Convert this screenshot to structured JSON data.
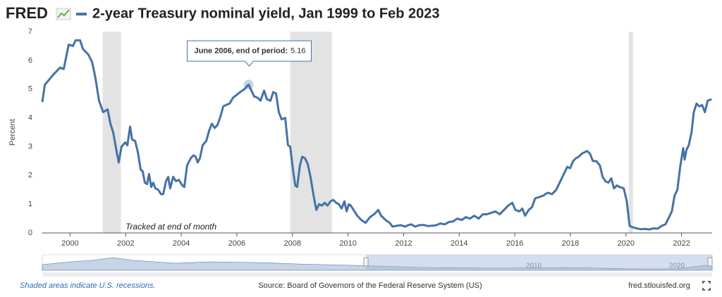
{
  "logo": "FRED",
  "chart_data": {
    "type": "line",
    "title": "2-year Treasury nominal yield, Jan 1999 to Feb 2023",
    "y_label": "Percent",
    "annotation": "Tracked at end of month",
    "tooltip": {
      "label": "June 2006, end of period:",
      "value": 5.16
    },
    "xlim": [
      1999,
      2023.1
    ],
    "xticks": [
      2000,
      2002,
      2004,
      2006,
      2008,
      2010,
      2012,
      2014,
      2016,
      2018,
      2020,
      2022
    ],
    "ylim": [
      0,
      7
    ],
    "yticks": [
      0,
      1,
      2,
      3,
      4,
      5,
      6,
      7
    ],
    "recessions": [
      [
        2001.17,
        2001.83
      ],
      [
        2007.92,
        2009.42
      ],
      [
        2020.1,
        2020.25
      ]
    ],
    "x": [
      1999.0,
      1999.09,
      1999.39,
      1999.64,
      1999.77,
      1999.95,
      2000.1,
      2000.2,
      2000.36,
      2000.46,
      2000.66,
      2000.79,
      2000.91,
      2001.04,
      2001.19,
      2001.35,
      2001.45,
      2001.55,
      2001.68,
      2001.75,
      2001.85,
      2001.98,
      2002.06,
      2002.16,
      2002.23,
      2002.34,
      2002.44,
      2002.54,
      2002.61,
      2002.69,
      2002.77,
      2002.84,
      2002.92,
      2002.99,
      2003.07,
      2003.17,
      2003.27,
      2003.35,
      2003.45,
      2003.53,
      2003.6,
      2003.71,
      2003.81,
      2003.91,
      2004.04,
      2004.11,
      2004.21,
      2004.34,
      2004.44,
      2004.52,
      2004.59,
      2004.67,
      2004.77,
      2004.9,
      2005.0,
      2005.1,
      2005.2,
      2005.3,
      2005.41,
      2005.51,
      2005.61,
      2005.74,
      2005.86,
      2005.99,
      2006.12,
      2006.27,
      2006.42,
      2006.5,
      2006.62,
      2006.75,
      2006.85,
      2006.98,
      2007.08,
      2007.21,
      2007.31,
      2007.41,
      2007.51,
      2007.61,
      2007.74,
      2007.84,
      2007.92,
      2008.02,
      2008.1,
      2008.17,
      2008.27,
      2008.35,
      2008.45,
      2008.55,
      2008.65,
      2008.76,
      2008.86,
      2008.96,
      2009.06,
      2009.16,
      2009.26,
      2009.37,
      2009.47,
      2009.57,
      2009.67,
      2009.77,
      2009.87,
      2009.95,
      2010.03,
      2010.1,
      2010.2,
      2010.33,
      2010.48,
      2010.63,
      2010.79,
      2010.94,
      2011.09,
      2011.19,
      2011.35,
      2011.5,
      2011.6,
      2011.75,
      2011.9,
      2012.06,
      2012.16,
      2012.28,
      2012.41,
      2012.56,
      2012.72,
      2012.87,
      2013.02,
      2013.17,
      2013.32,
      2013.48,
      2013.63,
      2013.78,
      2013.93,
      2014.09,
      2014.24,
      2014.39,
      2014.54,
      2014.7,
      2014.85,
      2015.0,
      2015.15,
      2015.3,
      2015.46,
      2015.61,
      2015.76,
      2015.91,
      2016.02,
      2016.17,
      2016.27,
      2016.37,
      2016.5,
      2016.62,
      2016.73,
      2016.88,
      2017.03,
      2017.18,
      2017.34,
      2017.49,
      2017.64,
      2017.79,
      2017.89,
      2017.99,
      2018.1,
      2018.2,
      2018.3,
      2018.4,
      2018.5,
      2018.6,
      2018.71,
      2018.81,
      2018.93,
      2019.06,
      2019.16,
      2019.26,
      2019.37,
      2019.47,
      2019.57,
      2019.67,
      2019.77,
      2019.92,
      2020.03,
      2020.13,
      2020.23,
      2020.38,
      2020.53,
      2020.69,
      2020.84,
      2020.99,
      2021.14,
      2021.29,
      2021.42,
      2021.55,
      2021.65,
      2021.75,
      2021.85,
      2021.95,
      2022.06,
      2022.11,
      2022.18,
      2022.26,
      2022.36,
      2022.44,
      2022.54,
      2022.64,
      2022.74,
      2022.84,
      2022.94,
      2023.08
    ],
    "series": [
      {
        "name": "2-year Treasury nominal yield",
        "color": "#4572a7",
        "values": [
          4.55,
          5.15,
          5.5,
          5.75,
          5.7,
          6.55,
          6.5,
          6.7,
          6.7,
          6.4,
          6.2,
          5.95,
          5.4,
          4.6,
          4.2,
          4.3,
          3.8,
          3.5,
          2.8,
          2.45,
          3.0,
          3.15,
          3.05,
          3.7,
          3.25,
          3.2,
          2.8,
          2.2,
          2.15,
          1.75,
          1.7,
          2.05,
          1.6,
          1.75,
          1.55,
          1.5,
          1.35,
          1.35,
          1.8,
          1.95,
          1.55,
          1.95,
          1.8,
          1.85,
          1.65,
          1.6,
          2.35,
          2.6,
          2.7,
          2.65,
          2.45,
          2.6,
          3.05,
          3.2,
          3.55,
          3.8,
          3.65,
          3.75,
          4.05,
          4.4,
          4.45,
          4.5,
          4.7,
          4.8,
          4.9,
          5.0,
          5.16,
          5.0,
          4.75,
          4.7,
          4.6,
          4.95,
          4.65,
          4.6,
          4.9,
          4.85,
          4.2,
          3.95,
          4.0,
          3.05,
          3.0,
          2.2,
          1.65,
          1.6,
          2.35,
          2.65,
          2.6,
          2.4,
          1.95,
          1.3,
          0.8,
          1.0,
          0.95,
          1.05,
          0.95,
          1.1,
          1.15,
          1.05,
          1.0,
          0.85,
          1.1,
          0.75,
          1.0,
          0.95,
          0.8,
          0.6,
          0.45,
          0.35,
          0.55,
          0.65,
          0.8,
          0.6,
          0.45,
          0.35,
          0.22,
          0.25,
          0.27,
          0.22,
          0.27,
          0.3,
          0.22,
          0.27,
          0.28,
          0.24,
          0.25,
          0.27,
          0.33,
          0.3,
          0.38,
          0.4,
          0.5,
          0.45,
          0.55,
          0.5,
          0.6,
          0.5,
          0.65,
          0.65,
          0.7,
          0.75,
          0.65,
          0.8,
          0.95,
          1.05,
          0.8,
          0.75,
          0.85,
          0.6,
          0.8,
          0.9,
          1.2,
          1.25,
          1.3,
          1.4,
          1.35,
          1.5,
          1.8,
          2.1,
          2.3,
          2.25,
          2.5,
          2.6,
          2.65,
          2.75,
          2.8,
          2.85,
          2.75,
          2.5,
          2.5,
          2.35,
          1.95,
          1.8,
          1.75,
          1.9,
          1.55,
          1.65,
          1.6,
          1.55,
          1.1,
          0.25,
          0.2,
          0.16,
          0.13,
          0.14,
          0.12,
          0.16,
          0.15,
          0.25,
          0.3,
          0.55,
          0.75,
          1.3,
          1.5,
          2.3,
          2.95,
          2.55,
          2.9,
          3.05,
          3.5,
          4.2,
          4.5,
          4.4,
          4.45,
          4.2,
          4.6,
          4.65
        ]
      }
    ]
  },
  "navigator": {
    "labels": [
      "2010",
      "2020"
    ]
  },
  "footer": {
    "note": "Shaded areas indicate U.S. recessions.",
    "source": "Source: Board of Governors of the Federal Reserve System (US)",
    "site": "fred.stlouisfed.org"
  }
}
